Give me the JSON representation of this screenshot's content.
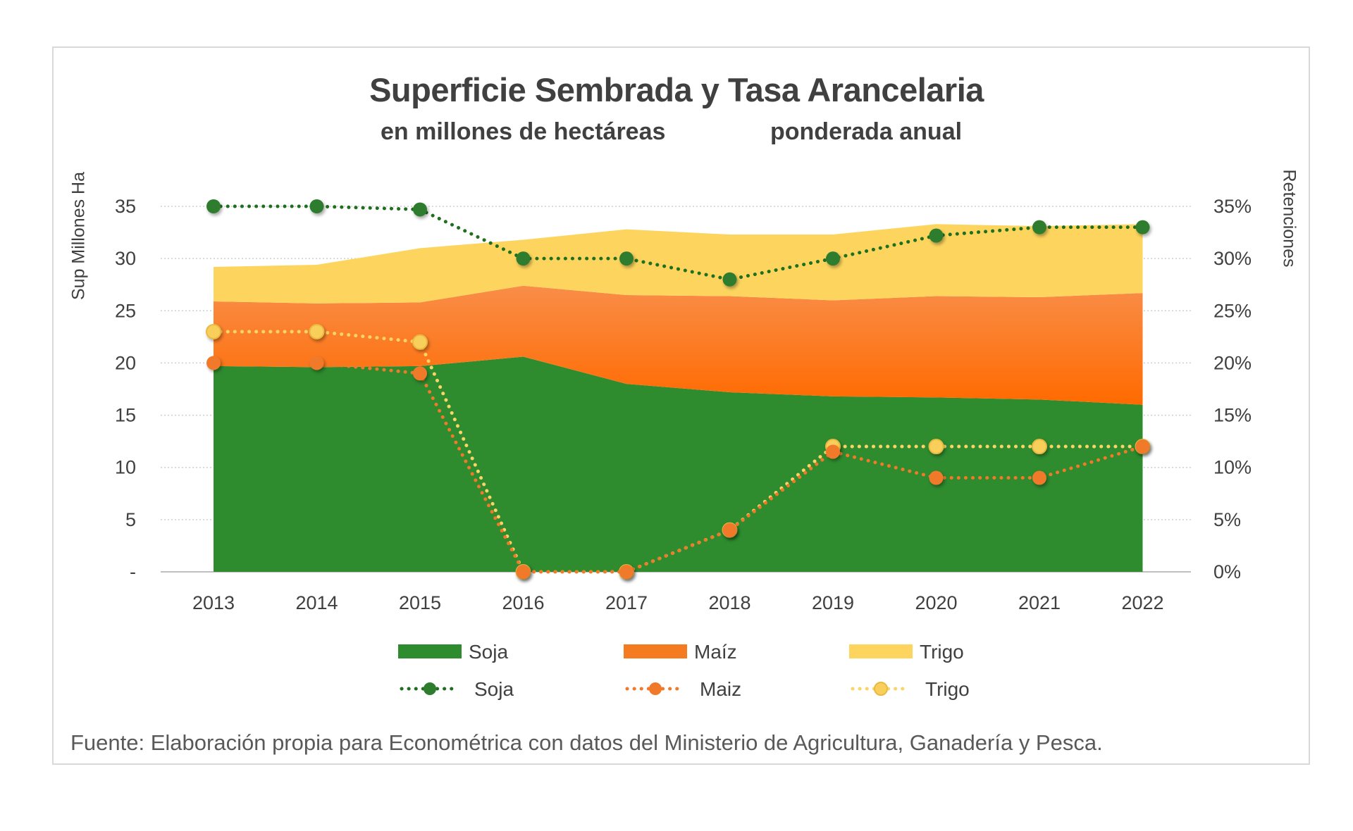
{
  "chart_data": {
    "type": "area",
    "title": "Superficie Sembrada y Tasa Arancelaria",
    "subtitle_left": "en millones de hectáreas",
    "subtitle_right": "ponderada anual",
    "ylabel": "Sup Millones Ha",
    "ylabel_right": "Retenciones",
    "source": "Fuente: Elaboración propia para Econométrica con datos del Ministerio de Agricultura, Ganadería y Pesca.",
    "categories": [
      "2013",
      "2014",
      "2015",
      "2016",
      "2017",
      "2018",
      "2019",
      "2020",
      "2021",
      "2022"
    ],
    "ylim": [
      0,
      35
    ],
    "yticks": [
      0,
      5,
      10,
      15,
      20,
      25,
      30,
      35
    ],
    "ytick_labels": [
      "-",
      "5",
      "10",
      "15",
      "20",
      "25",
      "30",
      "35"
    ],
    "ylim_right": [
      0,
      35
    ],
    "yticks_right_labels": [
      "0%",
      "5%",
      "10%",
      "15%",
      "20%",
      "25%",
      "30%",
      "35%"
    ],
    "grid": true,
    "legend_position": "bottom",
    "area_series": [
      {
        "name": "Soja",
        "color": "#2e8b2e",
        "values": [
          19.7,
          19.6,
          19.7,
          20.6,
          18.0,
          17.2,
          16.8,
          16.7,
          16.5,
          16.0
        ]
      },
      {
        "name": "Maíz",
        "color": "#f47b20",
        "values": [
          6.2,
          6.1,
          6.1,
          6.8,
          8.5,
          9.2,
          9.2,
          9.7,
          9.8,
          10.7
        ]
      },
      {
        "name": "Trigo",
        "color": "#fdd55e",
        "values": [
          3.3,
          3.7,
          5.2,
          4.4,
          6.3,
          5.9,
          6.3,
          6.9,
          6.8,
          6.6
        ]
      }
    ],
    "line_series": [
      {
        "name": "Soja",
        "color": "#2e7d2e",
        "unit": "%",
        "values": [
          35,
          35,
          34.7,
          30,
          30,
          28,
          30,
          32.2,
          33,
          33
        ]
      },
      {
        "name": "Maiz",
        "color": "#f07a2a",
        "unit": "%",
        "values": [
          20,
          20,
          19,
          0,
          0,
          4,
          11.5,
          9,
          9,
          12
        ]
      },
      {
        "name": "Trigo",
        "color": "#fad466",
        "unit": "%",
        "values": [
          23,
          23,
          22,
          0,
          0,
          4,
          12,
          12,
          12,
          12
        ]
      }
    ],
    "legend": {
      "area_labels": [
        "Soja",
        "Maíz",
        "Trigo"
      ],
      "line_labels": [
        "Soja",
        "Maiz",
        "Trigo"
      ]
    }
  }
}
